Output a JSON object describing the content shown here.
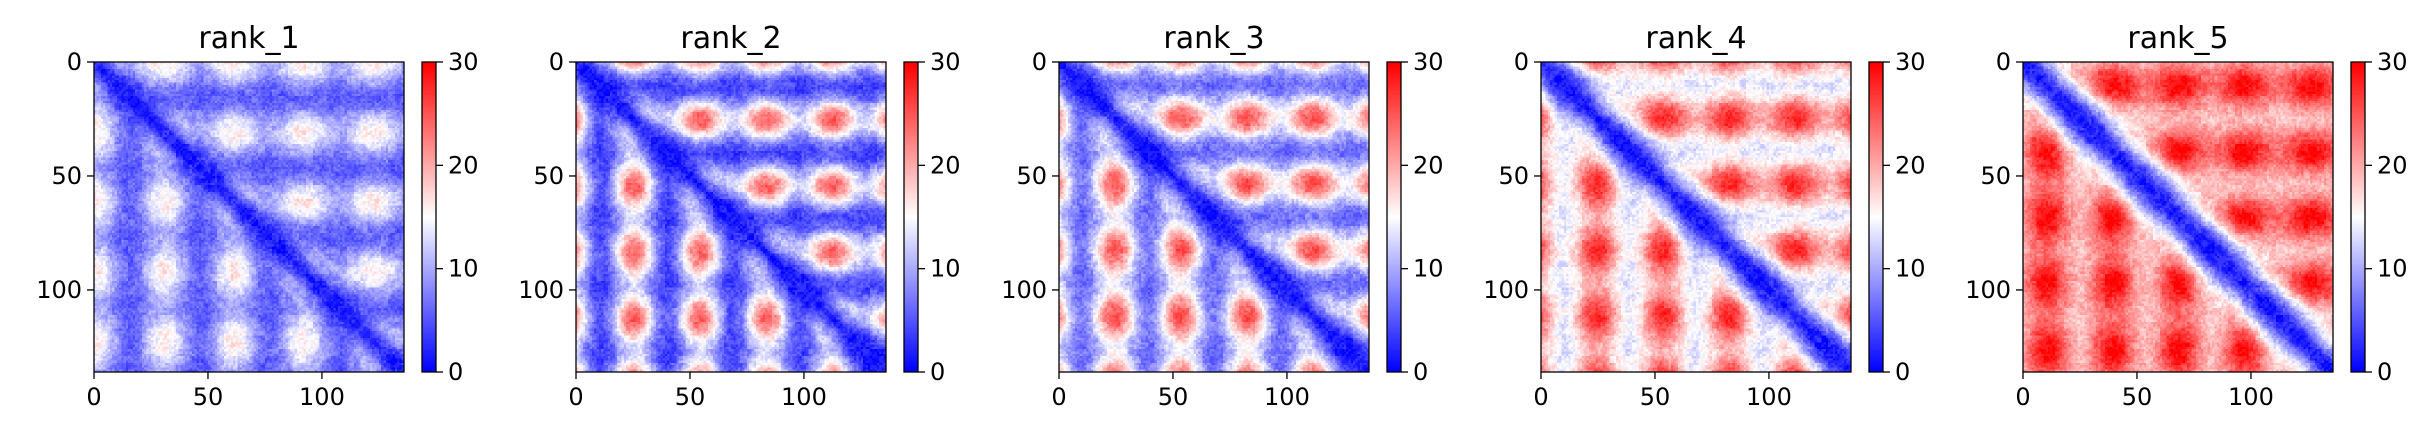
{
  "figure": {
    "background": "#ffffff"
  },
  "chart_data": [
    {
      "type": "heatmap",
      "title": "rank_1",
      "matrix_size": 136,
      "xlim": [
        0,
        136
      ],
      "ylim": [
        136,
        0
      ],
      "xticks": [
        0,
        50,
        100
      ],
      "yticks": [
        0,
        50,
        100
      ],
      "colorbar": {
        "min": 0,
        "max": 30,
        "ticks": [
          0,
          10,
          20,
          30
        ],
        "colormap": "bwr"
      },
      "pattern": {
        "diag_width": 6,
        "base": 9.5,
        "contact_spacing": 30.5,
        "contact_offset": 0,
        "contact_strength": 7,
        "noise": 3
      }
    },
    {
      "type": "heatmap",
      "title": "rank_2",
      "matrix_size": 136,
      "xlim": [
        0,
        136
      ],
      "ylim": [
        136,
        0
      ],
      "xticks": [
        0,
        50,
        100
      ],
      "yticks": [
        0,
        50,
        100
      ],
      "colorbar": {
        "min": 0,
        "max": 30,
        "ticks": [
          0,
          10,
          20,
          30
        ],
        "colormap": "bwr"
      },
      "pattern": {
        "diag_width": 7,
        "base": 11.5,
        "contact_spacing": 29,
        "contact_offset": 25,
        "contact_strength": 13,
        "noise": 3
      }
    },
    {
      "type": "heatmap",
      "title": "rank_3",
      "matrix_size": 136,
      "xlim": [
        0,
        136
      ],
      "ylim": [
        136,
        0
      ],
      "xticks": [
        0,
        50,
        100
      ],
      "yticks": [
        0,
        50,
        100
      ],
      "colorbar": {
        "min": 0,
        "max": 30,
        "ticks": [
          0,
          10,
          20,
          30
        ],
        "colormap": "bwr"
      },
      "pattern": {
        "diag_width": 8,
        "base": 13.5,
        "contact_spacing": 29,
        "contact_offset": 24,
        "contact_strength": 12,
        "noise": 3
      }
    },
    {
      "type": "heatmap",
      "title": "rank_4",
      "matrix_size": 136,
      "xlim": [
        0,
        136
      ],
      "ylim": [
        136,
        0
      ],
      "xticks": [
        0,
        50,
        100
      ],
      "yticks": [
        0,
        50,
        100
      ],
      "colorbar": {
        "min": 0,
        "max": 30,
        "ticks": [
          0,
          10,
          20,
          30
        ],
        "colormap": "bwr"
      },
      "pattern": {
        "diag_width": 9,
        "base": 19,
        "contact_spacing": 29,
        "contact_offset": 24,
        "contact_strength": 9,
        "noise": 3
      }
    },
    {
      "type": "heatmap",
      "title": "rank_5",
      "matrix_size": 136,
      "xlim": [
        0,
        136
      ],
      "ylim": [
        136,
        0
      ],
      "xticks": [
        0,
        50,
        100
      ],
      "yticks": [
        0,
        50,
        100
      ],
      "colorbar": {
        "min": 0,
        "max": 30,
        "ticks": [
          0,
          10,
          20,
          30
        ],
        "colormap": "bwr"
      },
      "pattern": {
        "diag_width": 10,
        "base": 23,
        "contact_spacing": 29,
        "contact_offset": 10,
        "contact_strength": 7,
        "noise": 3
      }
    }
  ]
}
